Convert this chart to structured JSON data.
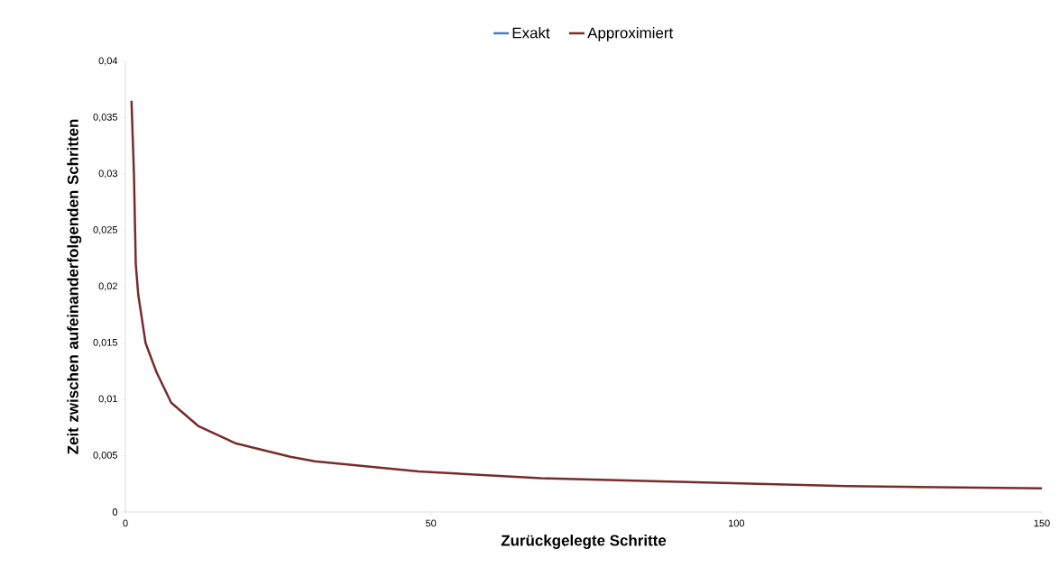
{
  "chart_data": {
    "type": "line",
    "xlabel": "Zurückgelegte Schritte",
    "ylabel": "Zeit zwischen aufeinanderfolgenden Schritten",
    "xlim": [
      0,
      150
    ],
    "xticks": [
      0,
      50,
      100,
      150
    ],
    "ylim": [
      0,
      0.04
    ],
    "yticks": [
      0,
      {
        "value": 0.005,
        "label": "0,005"
      },
      {
        "value": 0.01,
        "label": "0,01"
      },
      {
        "value": 0.015,
        "label": "0,015"
      },
      {
        "value": 0.02,
        "label": "0,02"
      },
      {
        "value": 0.025,
        "label": "0,025"
      },
      {
        "value": 0.03,
        "label": "0,03"
      },
      {
        "value": 0.035,
        "label": "0,035"
      },
      {
        "value": 0.04,
        "label": "0,04"
      }
    ],
    "x": [
      1,
      1.4,
      1.7,
      2.1,
      3.3,
      5.1,
      7.5,
      12,
      18,
      24,
      27,
      31,
      48,
      68,
      89,
      118,
      150
    ],
    "series": [
      {
        "name": "Exakt",
        "color": "#4a7ebb",
        "values": [
          null,
          null,
          null,
          null,
          null,
          null,
          null,
          null,
          null,
          null,
          null,
          null,
          null,
          null,
          null,
          null,
          null
        ]
      },
      {
        "name": "Approximiert",
        "color": "#772c2a",
        "values": [
          0.0365,
          0.03,
          0.022,
          0.0193,
          0.015,
          0.0124,
          0.0097,
          0.0076,
          0.0061,
          0.0053,
          0.0049,
          0.0045,
          0.0036,
          0.003,
          0.0027,
          0.0023,
          0.0021
        ]
      }
    ],
    "legend": "top",
    "grid": false,
    "marker": "none",
    "line_style": "solid"
  }
}
